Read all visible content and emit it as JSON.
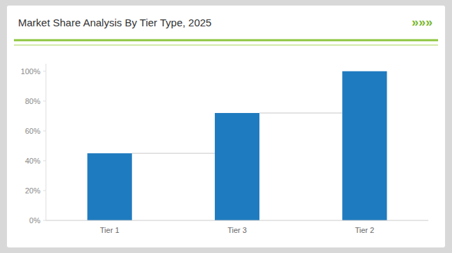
{
  "chart_data": {
    "type": "bar",
    "title": "Market Share Analysis By Tier Type, 2025",
    "categories": [
      "Tier 1",
      "Tier 3",
      "Tier 2"
    ],
    "values": [
      45,
      72,
      100
    ],
    "color": "#1f7bbf",
    "ylim": [
      0,
      105
    ],
    "yticks": [
      {
        "value": 0,
        "label": "0%"
      },
      {
        "value": 20,
        "label": "20%"
      },
      {
        "value": 40,
        "label": "40%"
      },
      {
        "value": 60,
        "label": "60%"
      },
      {
        "value": 80,
        "label": "80%"
      },
      {
        "value": 100,
        "label": "100%"
      }
    ],
    "grid": false,
    "annotations": [
      "»»»"
    ]
  }
}
